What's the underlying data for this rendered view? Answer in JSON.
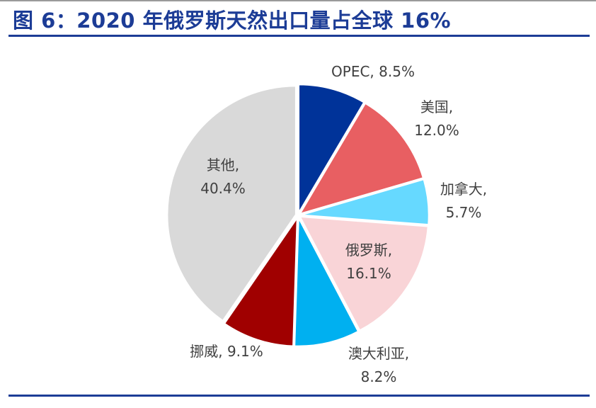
{
  "title": "图 6：2020 年俄罗斯天然出口量占全球 16%",
  "chart_data": {
    "type": "pie",
    "title": "图 6：2020 年俄罗斯天然出口量占全球 16%",
    "start": "top, clockwise",
    "slices": [
      {
        "label": "OPEC",
        "value": 8.5,
        "text": "8.5%",
        "color": "#003399"
      },
      {
        "label": "美国",
        "value": 12.0,
        "text": "12.0%",
        "color": "#E85F62"
      },
      {
        "label": "加拿大",
        "value": 5.7,
        "text": "5.7%",
        "color": "#66D9FF"
      },
      {
        "label": "俄罗斯",
        "value": 16.1,
        "text": "16.1%",
        "color": "#F9D4D7"
      },
      {
        "label": "澳大利亚",
        "value": 8.2,
        "text": "8.2%",
        "color": "#00B0F0"
      },
      {
        "label": "挪威",
        "value": 9.1,
        "text": "9.1%",
        "color": "#A00000"
      },
      {
        "label": "其他",
        "value": 40.4,
        "text": "40.4%",
        "color": "#D9D9D9"
      }
    ]
  }
}
